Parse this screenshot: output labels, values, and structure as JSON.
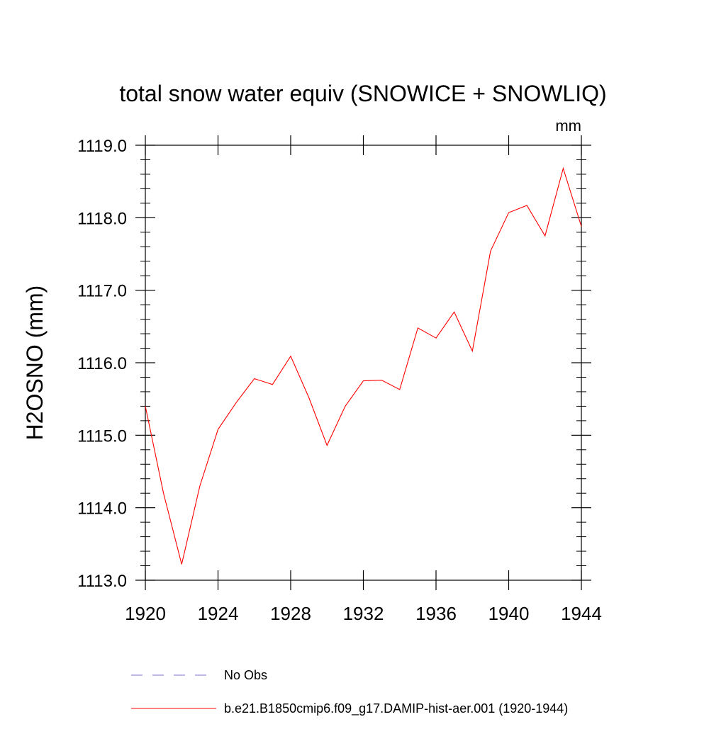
{
  "chart_data": {
    "type": "line",
    "title": "total snow water equiv (SNOWICE + SNOWLIQ)",
    "units_label": "mm",
    "ylabel": "H2OSNO  (mm)",
    "xlabel": "",
    "xlim": [
      1920,
      1944
    ],
    "ylim": [
      1113.0,
      1119.0
    ],
    "x_ticks": [
      {
        "value": 1920,
        "label": "1920"
      },
      {
        "value": 1924,
        "label": "1924"
      },
      {
        "value": 1928,
        "label": "1928"
      },
      {
        "value": 1932,
        "label": "1932"
      },
      {
        "value": 1936,
        "label": "1936"
      },
      {
        "value": 1940,
        "label": "1940"
      },
      {
        "value": 1944,
        "label": "1944"
      }
    ],
    "y_ticks": [
      {
        "value": 1113.0,
        "label": "1113.0"
      },
      {
        "value": 1114.0,
        "label": "1114.0"
      },
      {
        "value": 1115.0,
        "label": "1115.0"
      },
      {
        "value": 1116.0,
        "label": "1116.0"
      },
      {
        "value": 1117.0,
        "label": "1117.0"
      },
      {
        "value": 1118.0,
        "label": "1118.0"
      },
      {
        "value": 1119.0,
        "label": "1119.0"
      }
    ],
    "grid": false,
    "legend_position": "bottom",
    "series": [
      {
        "name": "b.e21.B1850cmip6.f09_g17.DAMIP-hist-aer.001 (1920-1944)",
        "color": "#ff0000",
        "dash": "solid",
        "x": [
          1920,
          1921,
          1922,
          1923,
          1924,
          1925,
          1926,
          1927,
          1928,
          1929,
          1930,
          1931,
          1932,
          1933,
          1934,
          1935,
          1936,
          1937,
          1938,
          1939,
          1940,
          1941,
          1942,
          1943,
          1944
        ],
        "values": [
          1115.4,
          1114.2,
          1113.22,
          1114.3,
          1115.08,
          1115.45,
          1115.78,
          1115.7,
          1116.09,
          1115.52,
          1114.86,
          1115.4,
          1115.75,
          1115.76,
          1115.63,
          1116.48,
          1116.34,
          1116.7,
          1116.16,
          1117.54,
          1118.07,
          1118.17,
          1117.75,
          1118.68,
          1117.88
        ]
      }
    ],
    "legend": [
      {
        "label": "No Obs",
        "color": "#7b6fd0",
        "dash": "dashed"
      },
      {
        "label": "b.e21.B1850cmip6.f09_g17.DAMIP-hist-aer.001 (1920-1944)",
        "color": "#ff0000",
        "dash": "solid"
      }
    ]
  }
}
